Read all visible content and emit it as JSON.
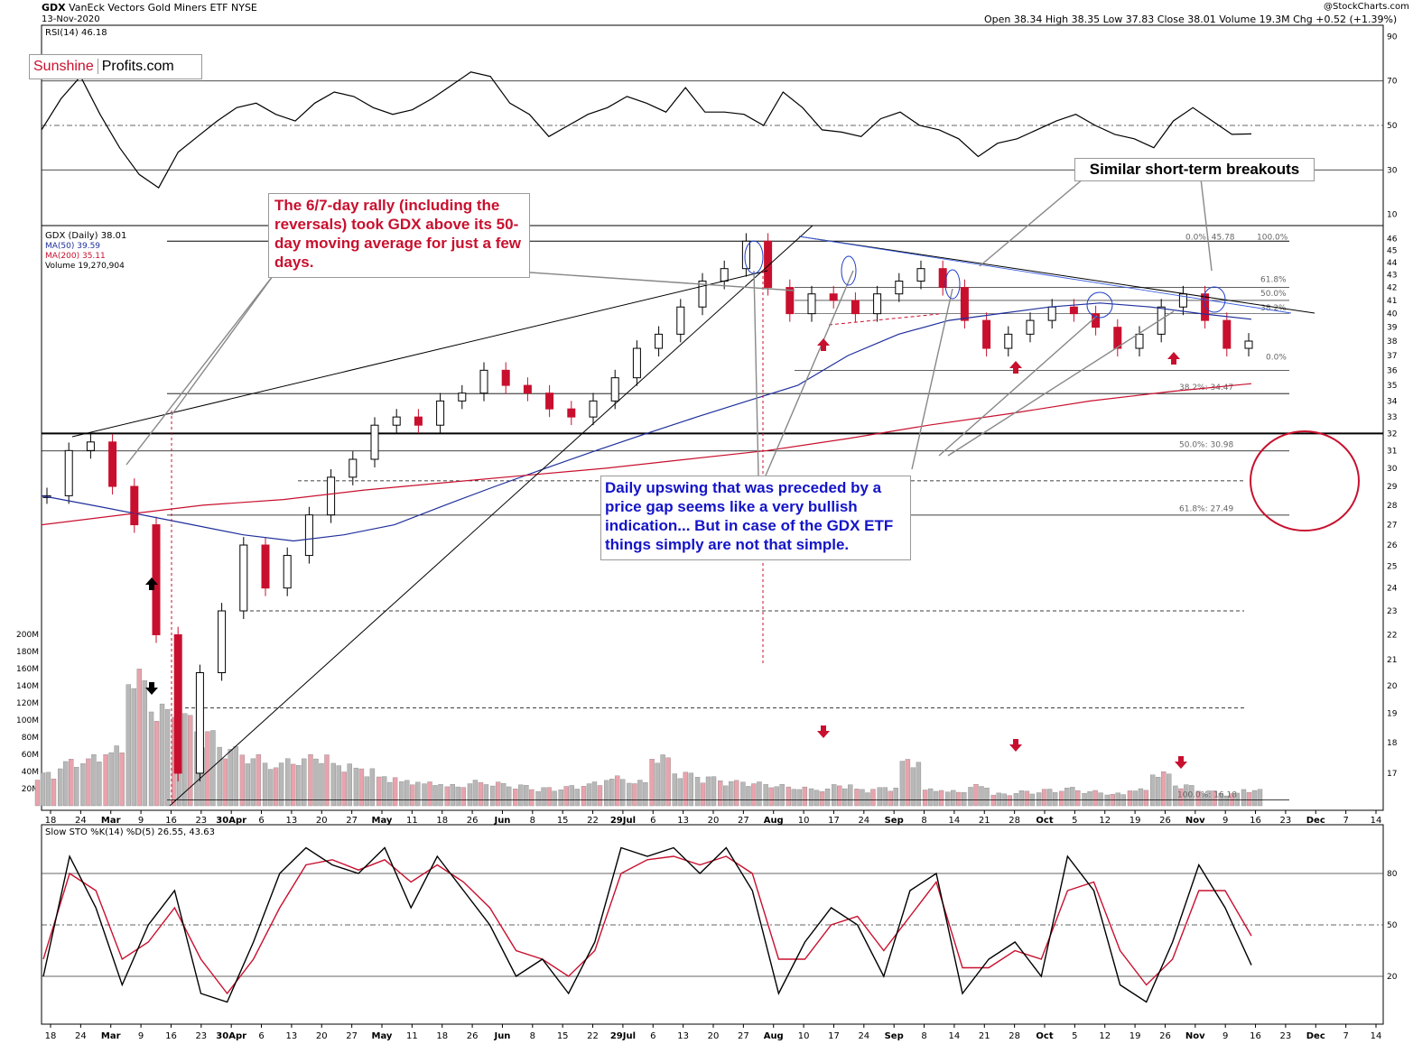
{
  "header": {
    "symbol": "GDX",
    "name": "VanEck Vectors Gold Miners ETF",
    "exchange": "NYSE",
    "date": "13-Nov-2020",
    "copyright": "@StockCharts.com",
    "quote": "Open 38.34  High 38.35  Low 37.83  Close 38.01  Volume 19.3M  Chg +0.52 (+1.39%)"
  },
  "logo": {
    "part1": "Sunshine",
    "part2": "Profits.com"
  },
  "rsi_label": "RSI(14) 46.18",
  "legend": {
    "main": "GDX (Daily) 38.01",
    "ma50": "MA(50) 39.59",
    "ma200": "MA(200) 35.11",
    "volume": "Volume 19,270,904"
  },
  "sto_label": "Slow STO %K(14) %D(5) 26.55, 43.63",
  "annotations": {
    "rally": "The 6/7-day rally (including the reversals) took GDX above its 50-day moving average for just a few days.",
    "upswing": "Daily upswing that was preceded by a price gap seems like a very bullish indication... But in case of the GDX ETF things simply are not that simple.",
    "breakouts": "Similar short-term breakouts"
  },
  "fib_labels": [
    "0.0%: 45.78",
    "100.0%",
    "61.8%",
    "50.0%",
    "38.2%",
    "0.0%",
    "38.2%: 34.47",
    "50.0%: 30.98",
    "61.8%: 27.49",
    "100.0%: 16.18"
  ],
  "colors": {
    "up": "#ffffff",
    "down": "#c8102e",
    "ma50": "#1f2f9c",
    "ma200": "#c8102e",
    "annot_red": "#c8102e",
    "annot_blue": "#1414c8"
  },
  "chart_data": [
    {
      "type": "line",
      "title": "RSI(14)",
      "y_ticks": [
        10,
        30,
        50,
        70,
        90
      ],
      "ylim": [
        5,
        95
      ],
      "levels": [
        30,
        50,
        70
      ],
      "series": [
        {
          "name": "RSI(14)",
          "values": [
            48,
            62,
            72,
            55,
            40,
            28,
            22,
            38,
            45,
            52,
            58,
            60,
            55,
            52,
            60,
            65,
            63,
            58,
            55,
            57,
            62,
            68,
            74,
            72,
            60,
            55,
            45,
            50,
            55,
            58,
            63,
            60,
            56,
            67,
            56,
            56,
            55,
            50,
            65,
            58,
            48,
            47,
            45,
            53,
            56,
            50,
            48,
            44,
            36,
            42,
            44,
            48,
            52,
            55,
            50,
            46,
            44,
            40,
            52,
            58,
            52,
            46,
            46.18
          ]
        }
      ]
    },
    {
      "type": "line",
      "title": "GDX (Daily) 38.01",
      "ylabel": "",
      "ylim": [
        16,
        46.5
      ],
      "y_ticks": [
        17,
        18,
        19,
        20,
        21,
        22,
        23,
        24,
        25,
        26,
        27,
        28,
        29,
        30,
        31,
        32,
        33,
        34,
        35,
        36,
        37,
        38,
        39,
        40,
        41,
        42,
        43,
        44,
        45,
        46
      ],
      "x_ticks": [
        "18",
        "24",
        "Mar",
        "9",
        "16",
        "23",
        "30Apr",
        "6",
        "13",
        "20",
        "27",
        "May",
        "11",
        "18",
        "26",
        "Jun",
        "8",
        "15",
        "22",
        "29Jul",
        "6",
        "13",
        "20",
        "27",
        "Aug",
        "10",
        "17",
        "24",
        "Sep",
        "8",
        "14",
        "21",
        "28",
        "Oct",
        "5",
        "12",
        "19",
        "26",
        "Nov",
        "9",
        "16",
        "23",
        "Dec",
        "7",
        "14"
      ],
      "series": [
        {
          "name": "GDX (Daily)",
          "values": [
            28.5,
            31.0,
            31.5,
            29.0,
            27.0,
            22.0,
            17.0,
            20.5,
            23.0,
            26.0,
            24.0,
            25.5,
            27.5,
            29.5,
            30.5,
            32.5,
            33.0,
            32.5,
            34.0,
            34.5,
            36.0,
            35.0,
            34.5,
            33.5,
            33.0,
            34.0,
            35.5,
            37.5,
            38.5,
            40.5,
            42.5,
            43.5,
            45.78,
            42.0,
            40.0,
            41.5,
            41.0,
            40.0,
            41.5,
            42.5,
            43.5,
            42.0,
            39.5,
            37.5,
            38.5,
            39.5,
            40.5,
            40.0,
            39.0,
            37.5,
            38.5,
            40.5,
            41.5,
            39.5,
            37.5,
            38.01
          ]
        },
        {
          "name": "MA(50) 39.59",
          "values": [
            28.5,
            28.0,
            27.5,
            27.0,
            26.5,
            26.2,
            26.5,
            27.0,
            28.0,
            29.0,
            30.0,
            31.0,
            32.0,
            33.0,
            34.0,
            35.0,
            37.0,
            38.5,
            39.5,
            40.0,
            40.5,
            40.8,
            40.5,
            40.0,
            39.59
          ]
        },
        {
          "name": "MA(200) 35.11",
          "values": [
            27.0,
            27.5,
            28.0,
            28.3,
            28.8,
            29.2,
            29.6,
            30.0,
            30.5,
            31.0,
            31.7,
            32.5,
            33.2,
            34.0,
            34.6,
            35.11
          ]
        }
      ],
      "fibonacci": {
        "high": 45.78,
        "low": 16.18,
        "retracements": {
          "38.2%": 34.47,
          "50.0%": 30.98,
          "61.8%": 27.49
        }
      }
    },
    {
      "type": "bar",
      "title": "Volume",
      "y_ticks": [
        "20M",
        "40M",
        "60M",
        "80M",
        "100M",
        "120M",
        "140M",
        "160M",
        "180M",
        "200M"
      ],
      "ylim": [
        0,
        210
      ],
      "values": [
        40,
        55,
        60,
        70,
        160,
        120,
        110,
        90,
        70,
        60,
        50,
        55,
        60,
        50,
        45,
        35,
        30,
        28,
        25,
        30,
        28,
        25,
        22,
        24,
        28,
        35,
        30,
        60,
        40,
        35,
        30,
        28,
        25,
        22,
        20,
        25,
        20,
        22,
        55,
        20,
        18,
        25,
        15,
        18,
        20,
        22,
        18,
        15,
        20,
        40,
        25,
        18,
        15,
        19.3
      ]
    },
    {
      "type": "line",
      "title": "Slow STO %K(14) %D(5)",
      "y_ticks": [
        20,
        50,
        80
      ],
      "ylim": [
        0,
        100
      ],
      "series": [
        {
          "name": "%K",
          "values": [
            20,
            90,
            60,
            15,
            50,
            70,
            10,
            5,
            40,
            80,
            95,
            85,
            80,
            95,
            60,
            90,
            70,
            50,
            20,
            30,
            10,
            40,
            95,
            90,
            95,
            80,
            95,
            70,
            10,
            40,
            60,
            50,
            20,
            70,
            80,
            10,
            30,
            40,
            20,
            90,
            70,
            15,
            5,
            40,
            85,
            60,
            26.55
          ]
        },
        {
          "name": "%D",
          "values": [
            30,
            80,
            70,
            30,
            40,
            60,
            30,
            10,
            30,
            60,
            85,
            88,
            82,
            88,
            75,
            85,
            75,
            60,
            35,
            30,
            20,
            35,
            80,
            88,
            90,
            85,
            90,
            80,
            30,
            30,
            50,
            55,
            35,
            55,
            75,
            25,
            25,
            35,
            30,
            70,
            75,
            35,
            15,
            30,
            70,
            70,
            43.63
          ]
        }
      ]
    }
  ]
}
